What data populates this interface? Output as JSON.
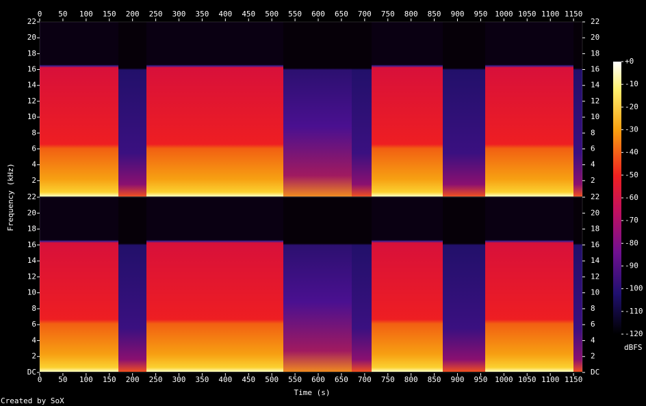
{
  "chart_data": {
    "type": "spectrogram",
    "x_label": "Time (s)",
    "y_label": "Frequency (kHz)",
    "xlim": [
      0,
      1169
    ],
    "xticks": [
      0,
      50,
      100,
      150,
      200,
      250,
      300,
      350,
      400,
      450,
      500,
      550,
      600,
      650,
      700,
      750,
      800,
      850,
      900,
      950,
      1000,
      1050,
      1100,
      1150
    ],
    "panels": [
      {
        "ylim": [
          0,
          22
        ],
        "yticks": [
          2,
          4,
          6,
          8,
          10,
          12,
          14,
          16,
          18,
          20,
          22
        ]
      },
      {
        "ylim": [
          0,
          22
        ],
        "yticks": [
          {
            "value": 0,
            "label": "DC"
          },
          2,
          4,
          6,
          8,
          10,
          12,
          14,
          16,
          18,
          20,
          22
        ]
      }
    ],
    "colorbar": {
      "label": "dBFS",
      "zlim": [
        -120,
        0
      ],
      "ticks": [
        {
          "value": 0,
          "label": "+0"
        },
        -10,
        -20,
        -30,
        -40,
        -50,
        -60,
        -70,
        -80,
        -90,
        -100,
        -110,
        -120
      ]
    }
  },
  "footer": "Created by SoX"
}
